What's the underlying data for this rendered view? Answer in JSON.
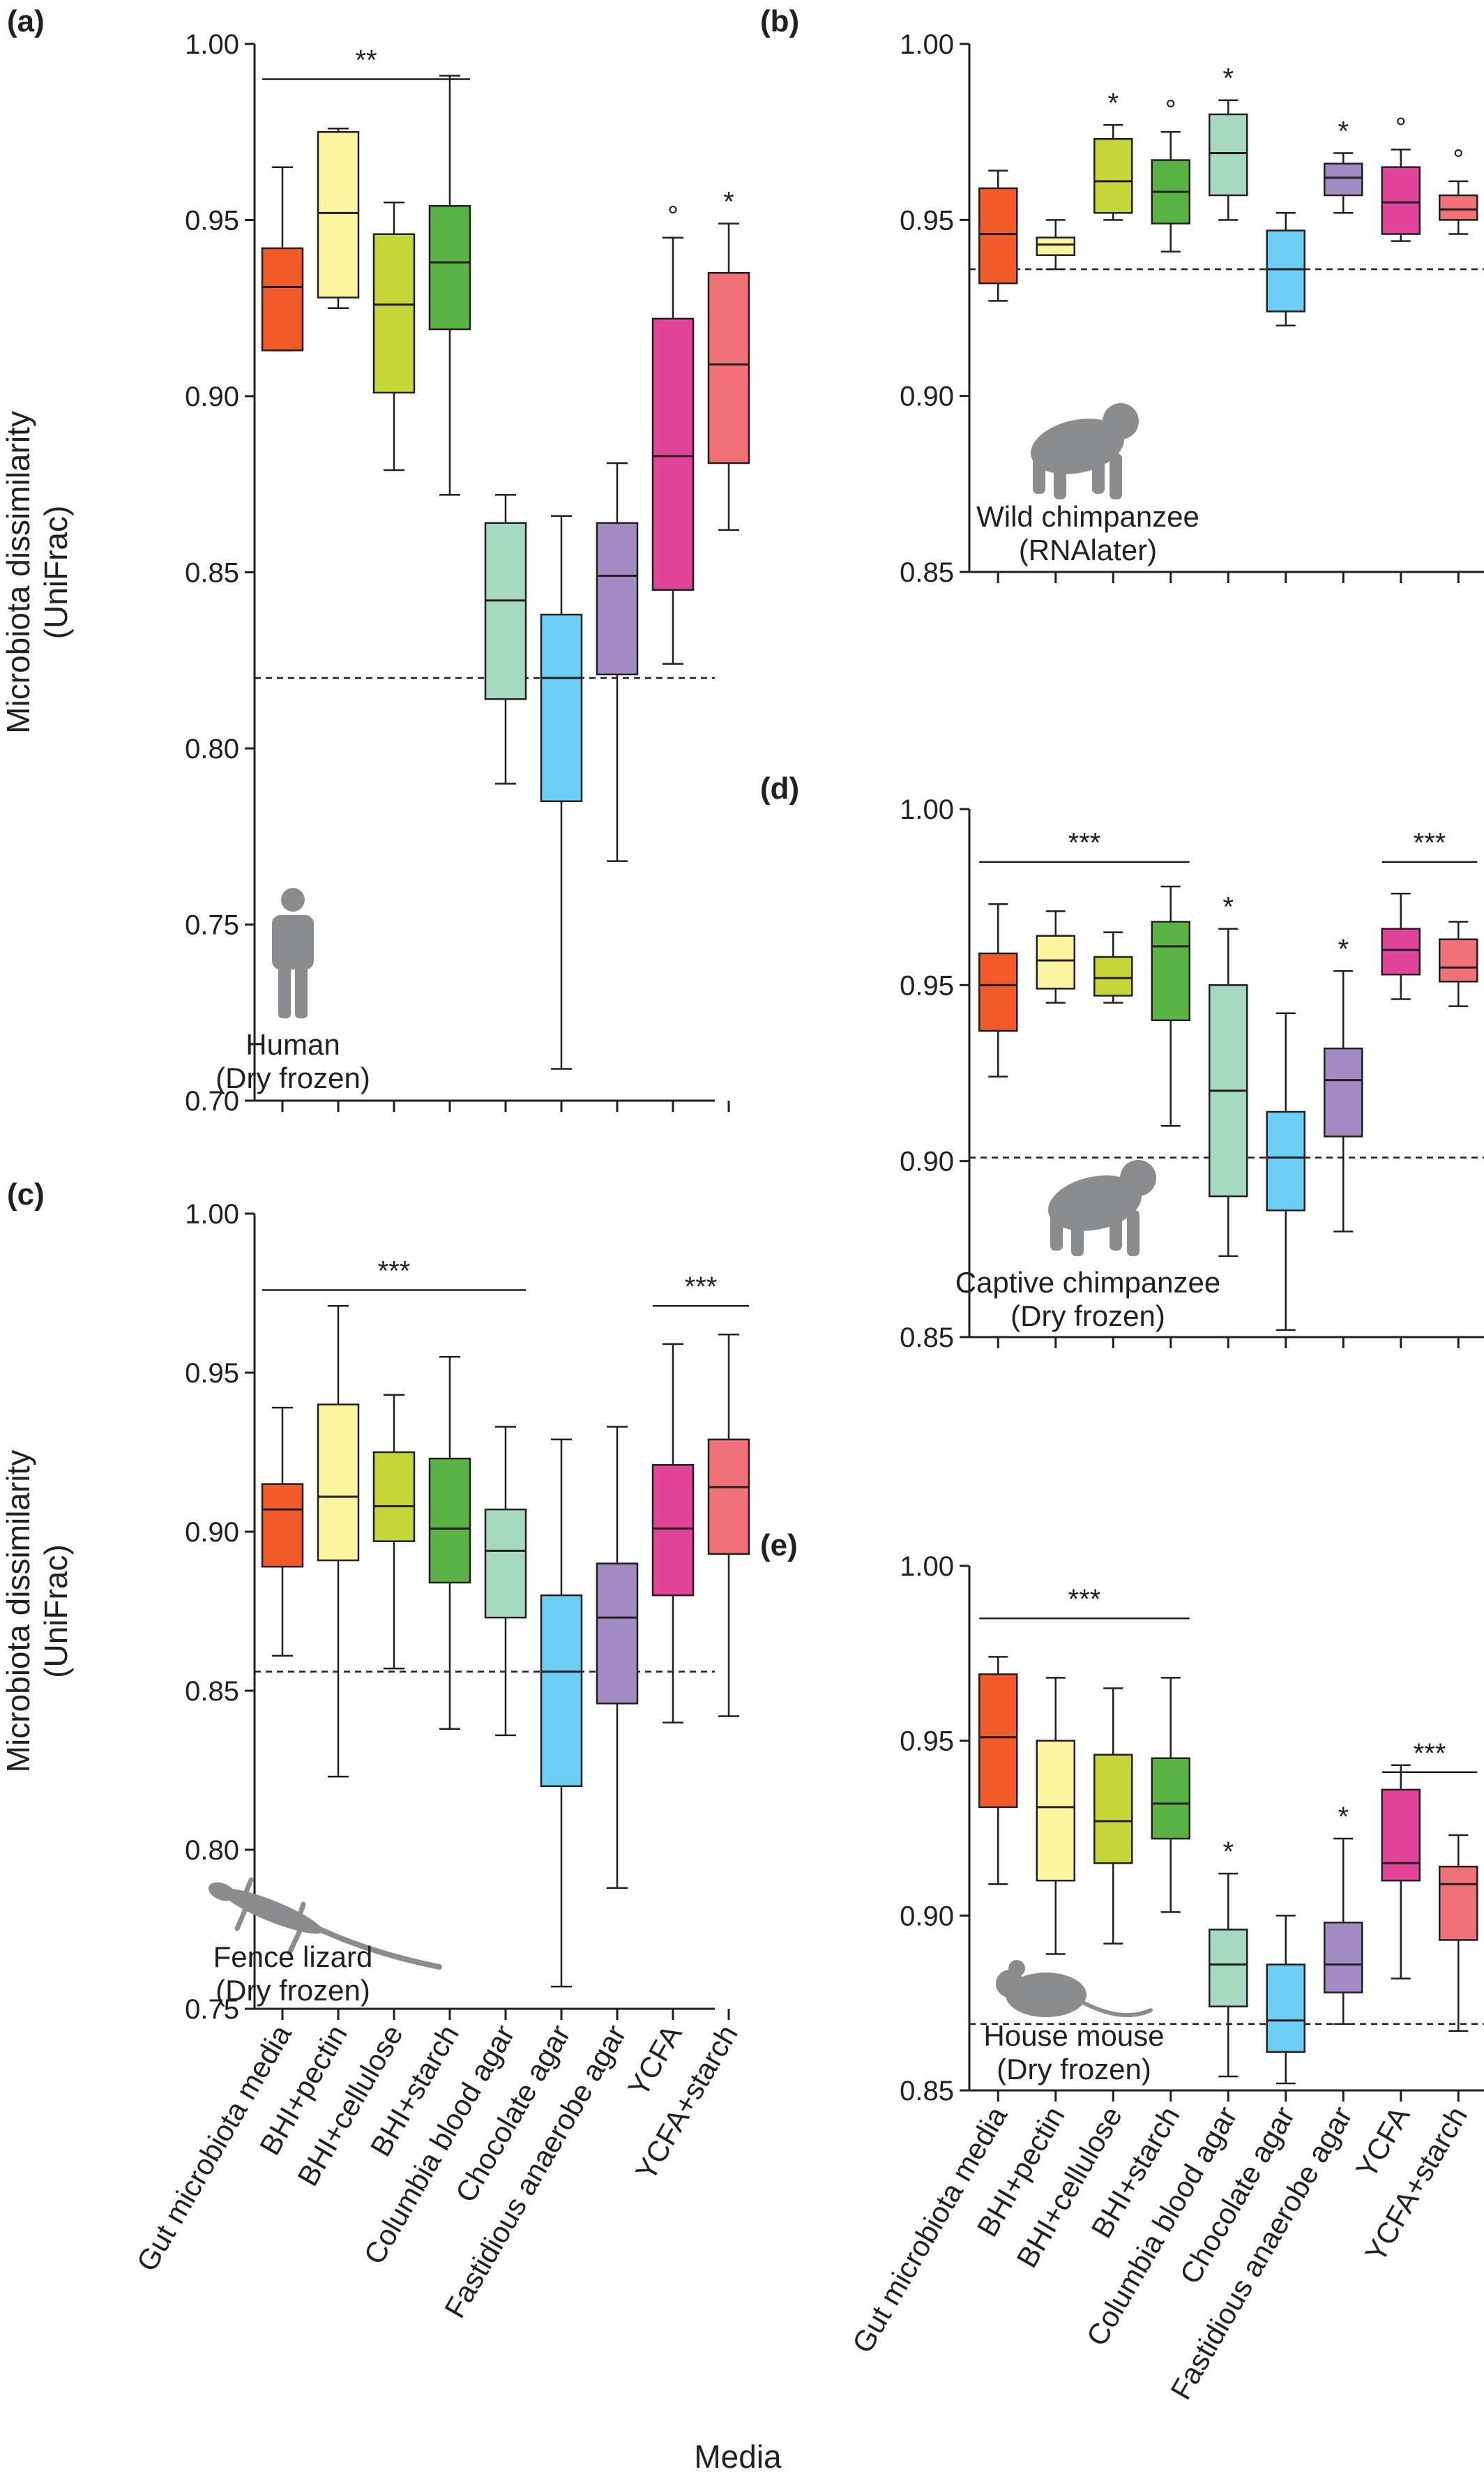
{
  "figure": {
    "x_title": "Media",
    "y_title_lines": [
      "Microbiota dissimilarity",
      "(UniFrac)"
    ]
  },
  "categories": [
    "Gut microbiota media",
    "BHI+pectin",
    "BHI+cellulose",
    "BHI+starch",
    "Columbia blood agar",
    "Chocolate agar",
    "Fastidious anaerobe agar",
    "YCFA",
    "YCFA+starch"
  ],
  "colors": [
    "#f15a29",
    "#fbf4a0",
    "#c4d63a",
    "#5bb346",
    "#a6d9bf",
    "#6dcff6",
    "#a18bc2",
    "#e2449a",
    "#f07178"
  ],
  "chart_data": [
    {
      "panel": "(a)",
      "type": "box",
      "species_lines": [
        "Human",
        "(Dry frozen)"
      ],
      "icon": "human-icon",
      "ylim": [
        0.7,
        1.0
      ],
      "yticks": [
        "0.70",
        "0.75",
        "0.80",
        "0.85",
        "0.90",
        "0.95",
        "1.00"
      ],
      "reference_line": 0.82,
      "has_ylabel": true,
      "show_xlabels": false,
      "boxes": [
        {
          "whisker_low": 0.913,
          "q1": 0.913,
          "median": 0.931,
          "q3": 0.942,
          "whisker_high": 0.965
        },
        {
          "whisker_low": 0.925,
          "q1": 0.928,
          "median": 0.952,
          "q3": 0.975,
          "whisker_high": 0.976
        },
        {
          "whisker_low": 0.879,
          "q1": 0.901,
          "median": 0.926,
          "q3": 0.946,
          "whisker_high": 0.955
        },
        {
          "whisker_low": 0.872,
          "q1": 0.919,
          "median": 0.938,
          "q3": 0.954,
          "whisker_high": 0.991
        },
        {
          "whisker_low": 0.79,
          "q1": 0.814,
          "median": 0.842,
          "q3": 0.864,
          "whisker_high": 0.872
        },
        {
          "whisker_low": 0.709,
          "q1": 0.785,
          "median": 0.82,
          "q3": 0.838,
          "whisker_high": 0.866
        },
        {
          "whisker_low": 0.768,
          "q1": 0.821,
          "median": 0.849,
          "q3": 0.864,
          "whisker_high": 0.881
        },
        {
          "whisker_low": 0.824,
          "q1": 0.845,
          "median": 0.883,
          "q3": 0.922,
          "whisker_high": 0.945
        },
        {
          "whisker_low": 0.862,
          "q1": 0.881,
          "median": 0.909,
          "q3": 0.935,
          "whisker_high": 0.949
        }
      ],
      "box_marks": [
        {
          "index": 7,
          "text": "°"
        },
        {
          "index": 8,
          "text": "*"
        }
      ],
      "brackets": [
        {
          "from": 0,
          "to": 3,
          "text": "**",
          "level": 0.99
        }
      ]
    },
    {
      "panel": "(b)",
      "type": "box",
      "species_lines": [
        "Wild chimpanzee",
        "(RNAlater)"
      ],
      "icon": "chimpanzee-icon",
      "ylim": [
        0.85,
        1.0
      ],
      "yticks": [
        "0.85",
        "0.90",
        "0.95",
        "1.00"
      ],
      "reference_line": 0.936,
      "has_ylabel": false,
      "show_xlabels": false,
      "boxes": [
        {
          "whisker_low": 0.927,
          "q1": 0.932,
          "median": 0.946,
          "q3": 0.959,
          "whisker_high": 0.964
        },
        {
          "whisker_low": 0.936,
          "q1": 0.94,
          "median": 0.943,
          "q3": 0.945,
          "whisker_high": 0.95
        },
        {
          "whisker_low": 0.95,
          "q1": 0.952,
          "median": 0.961,
          "q3": 0.973,
          "whisker_high": 0.977
        },
        {
          "whisker_low": 0.941,
          "q1": 0.949,
          "median": 0.958,
          "q3": 0.967,
          "whisker_high": 0.975
        },
        {
          "whisker_low": 0.95,
          "q1": 0.957,
          "median": 0.969,
          "q3": 0.98,
          "whisker_high": 0.984
        },
        {
          "whisker_low": 0.92,
          "q1": 0.924,
          "median": 0.936,
          "q3": 0.947,
          "whisker_high": 0.952
        },
        {
          "whisker_low": 0.952,
          "q1": 0.957,
          "median": 0.962,
          "q3": 0.966,
          "whisker_high": 0.969
        },
        {
          "whisker_low": 0.944,
          "q1": 0.946,
          "median": 0.955,
          "q3": 0.965,
          "whisker_high": 0.97
        },
        {
          "whisker_low": 0.946,
          "q1": 0.95,
          "median": 0.953,
          "q3": 0.957,
          "whisker_high": 0.961
        }
      ],
      "box_marks": [
        {
          "index": 2,
          "text": "*"
        },
        {
          "index": 3,
          "text": "°"
        },
        {
          "index": 4,
          "text": "*"
        },
        {
          "index": 6,
          "text": "*"
        },
        {
          "index": 7,
          "text": "°"
        },
        {
          "index": 8,
          "text": "°"
        }
      ],
      "brackets": []
    },
    {
      "panel": "(c)",
      "type": "box",
      "species_lines": [
        "Fence lizard",
        "(Dry frozen)"
      ],
      "icon": "lizard-icon",
      "ylim": [
        0.75,
        1.0
      ],
      "yticks": [
        "0.75",
        "0.80",
        "0.85",
        "0.90",
        "0.95",
        "1.00"
      ],
      "reference_line": 0.856,
      "has_ylabel": true,
      "show_xlabels": true,
      "boxes": [
        {
          "whisker_low": 0.861,
          "q1": 0.889,
          "median": 0.907,
          "q3": 0.915,
          "whisker_high": 0.939
        },
        {
          "whisker_low": 0.823,
          "q1": 0.891,
          "median": 0.911,
          "q3": 0.94,
          "whisker_high": 0.971
        },
        {
          "whisker_low": 0.857,
          "q1": 0.897,
          "median": 0.908,
          "q3": 0.925,
          "whisker_high": 0.943
        },
        {
          "whisker_low": 0.838,
          "q1": 0.884,
          "median": 0.901,
          "q3": 0.923,
          "whisker_high": 0.955
        },
        {
          "whisker_low": 0.836,
          "q1": 0.873,
          "median": 0.894,
          "q3": 0.907,
          "whisker_high": 0.933
        },
        {
          "whisker_low": 0.757,
          "q1": 0.82,
          "median": 0.856,
          "q3": 0.88,
          "whisker_high": 0.929
        },
        {
          "whisker_low": 0.788,
          "q1": 0.846,
          "median": 0.873,
          "q3": 0.89,
          "whisker_high": 0.933
        },
        {
          "whisker_low": 0.84,
          "q1": 0.88,
          "median": 0.901,
          "q3": 0.921,
          "whisker_high": 0.959
        },
        {
          "whisker_low": 0.842,
          "q1": 0.893,
          "median": 0.914,
          "q3": 0.929,
          "whisker_high": 0.962
        }
      ],
      "box_marks": [],
      "brackets": [
        {
          "from": 0,
          "to": 4,
          "text": "***",
          "level": 0.976
        },
        {
          "from": 7,
          "to": 8,
          "text": "***",
          "level": 0.971
        }
      ]
    },
    {
      "panel": "(d)",
      "type": "box",
      "species_lines": [
        "Captive chimpanzee",
        "(Dry frozen)"
      ],
      "icon": "chimpanzee-icon",
      "ylim": [
        0.85,
        1.0
      ],
      "yticks": [
        "0.85",
        "0.90",
        "0.95",
        "1.00"
      ],
      "reference_line": 0.901,
      "has_ylabel": false,
      "show_xlabels": false,
      "boxes": [
        {
          "whisker_low": 0.924,
          "q1": 0.937,
          "median": 0.95,
          "q3": 0.959,
          "whisker_high": 0.973
        },
        {
          "whisker_low": 0.945,
          "q1": 0.949,
          "median": 0.957,
          "q3": 0.964,
          "whisker_high": 0.971
        },
        {
          "whisker_low": 0.945,
          "q1": 0.947,
          "median": 0.952,
          "q3": 0.958,
          "whisker_high": 0.965
        },
        {
          "whisker_low": 0.91,
          "q1": 0.94,
          "median": 0.961,
          "q3": 0.968,
          "whisker_high": 0.978
        },
        {
          "whisker_low": 0.873,
          "q1": 0.89,
          "median": 0.92,
          "q3": 0.95,
          "whisker_high": 0.966
        },
        {
          "whisker_low": 0.852,
          "q1": 0.886,
          "median": 0.901,
          "q3": 0.914,
          "whisker_high": 0.942
        },
        {
          "whisker_low": 0.88,
          "q1": 0.907,
          "median": 0.923,
          "q3": 0.932,
          "whisker_high": 0.954
        },
        {
          "whisker_low": 0.946,
          "q1": 0.953,
          "median": 0.96,
          "q3": 0.966,
          "whisker_high": 0.976
        },
        {
          "whisker_low": 0.944,
          "q1": 0.951,
          "median": 0.955,
          "q3": 0.963,
          "whisker_high": 0.968
        }
      ],
      "box_marks": [
        {
          "index": 4,
          "text": "*"
        },
        {
          "index": 6,
          "text": "*"
        }
      ],
      "brackets": [
        {
          "from": 0,
          "to": 3,
          "text": "***",
          "level": 0.985
        },
        {
          "from": 7,
          "to": 8,
          "text": "***",
          "level": 0.985
        }
      ]
    },
    {
      "panel": "(e)",
      "type": "box",
      "species_lines": [
        "House mouse",
        "(Dry frozen)"
      ],
      "icon": "mouse-icon",
      "ylim": [
        0.85,
        1.0
      ],
      "yticks": [
        "0.85",
        "0.90",
        "0.95",
        "1.00"
      ],
      "reference_line": 0.869,
      "has_ylabel": false,
      "show_xlabels": true,
      "boxes": [
        {
          "whisker_low": 0.909,
          "q1": 0.931,
          "median": 0.951,
          "q3": 0.969,
          "whisker_high": 0.974
        },
        {
          "whisker_low": 0.889,
          "q1": 0.91,
          "median": 0.931,
          "q3": 0.95,
          "whisker_high": 0.968
        },
        {
          "whisker_low": 0.892,
          "q1": 0.915,
          "median": 0.927,
          "q3": 0.946,
          "whisker_high": 0.965
        },
        {
          "whisker_low": 0.901,
          "q1": 0.922,
          "median": 0.932,
          "q3": 0.945,
          "whisker_high": 0.968
        },
        {
          "whisker_low": 0.854,
          "q1": 0.874,
          "median": 0.886,
          "q3": 0.896,
          "whisker_high": 0.912
        },
        {
          "whisker_low": 0.852,
          "q1": 0.861,
          "median": 0.87,
          "q3": 0.886,
          "whisker_high": 0.9
        },
        {
          "whisker_low": 0.869,
          "q1": 0.878,
          "median": 0.886,
          "q3": 0.898,
          "whisker_high": 0.922
        },
        {
          "whisker_low": 0.882,
          "q1": 0.91,
          "median": 0.915,
          "q3": 0.936,
          "whisker_high": 0.943
        },
        {
          "whisker_low": 0.867,
          "q1": 0.893,
          "median": 0.909,
          "q3": 0.914,
          "whisker_high": 0.923
        }
      ],
      "box_marks": [
        {
          "index": 4,
          "text": "*"
        },
        {
          "index": 6,
          "text": "*"
        }
      ],
      "brackets": [
        {
          "from": 0,
          "to": 3,
          "text": "***",
          "level": 0.985
        },
        {
          "from": 7,
          "to": 8,
          "text": "***",
          "level": 0.941
        }
      ]
    }
  ]
}
